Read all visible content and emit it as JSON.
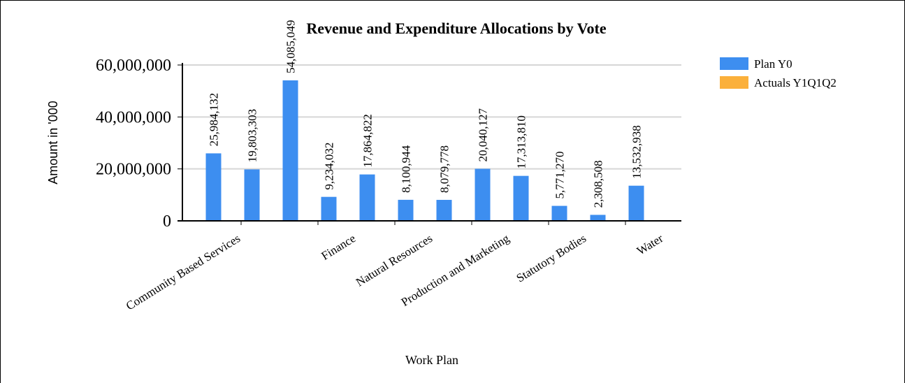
{
  "chart_data": {
    "type": "bar",
    "title": "Revenue and Expenditure Allocations by Vote",
    "xlabel": "Work Plan",
    "ylabel": "Amount in '000",
    "ylim": [
      0,
      60000000
    ],
    "yticks": [
      0,
      20000000,
      40000000,
      60000000
    ],
    "ytick_labels": [
      "0",
      "20,000,000",
      "40,000,000",
      "60,000,000"
    ],
    "grid": true,
    "legend_position": "top-right",
    "categories": [
      "Community Based Services",
      "",
      "",
      "Finance",
      "",
      "Natural Resources",
      "",
      "Production and Marketing",
      "",
      "Statutory Bodies",
      "",
      "Water"
    ],
    "series": [
      {
        "name": "Plan Y0",
        "color": "#3d8ef0",
        "values": [
          25984132,
          19803303,
          54085049,
          9234032,
          17864822,
          8100944,
          8079778,
          20040127,
          17313810,
          5771270,
          2308508,
          13532938
        ],
        "labels": [
          "25,984,132",
          "19,803,303",
          "54,085,049",
          "9,234,032",
          "17,864,822",
          "8,100,944",
          "8,079,778",
          "20,040,127",
          "17,313,810",
          "5,771,270",
          "2,308,508",
          "13,532,938"
        ]
      },
      {
        "name": "Actuals Y1Q1Q2",
        "color": "#fbb03b",
        "values": [
          0,
          0,
          0,
          0,
          0,
          0,
          0,
          0,
          0,
          0,
          0,
          0
        ],
        "labels": []
      }
    ]
  }
}
